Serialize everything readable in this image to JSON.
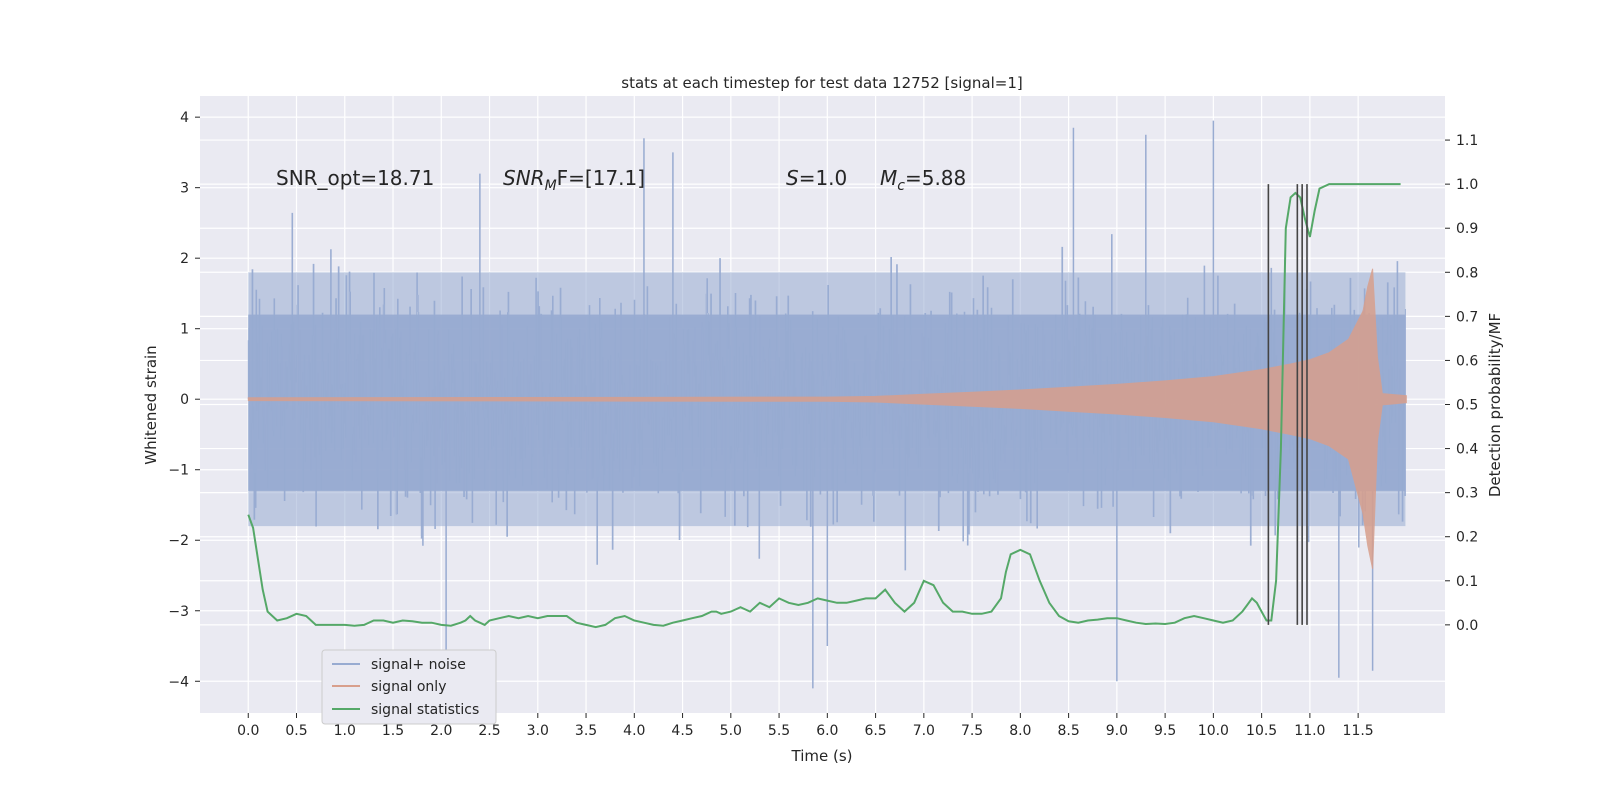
{
  "chart_data": {
    "type": "line",
    "title": "stats at each timestep for test data 12752 [signal=1]",
    "xlabel": "Time (s)",
    "ylabel_left": "Whitened strain",
    "ylabel_right": "Detection probability/MF",
    "xlim": [
      -0.5,
      12.4
    ],
    "ylim_left": [
      -4.45,
      4.3
    ],
    "ylim_right": [
      -0.2,
      1.2
    ],
    "x_ticks": [
      0.0,
      0.5,
      1.0,
      1.5,
      2.0,
      2.5,
      3.0,
      3.5,
      4.0,
      4.5,
      5.0,
      5.5,
      6.0,
      6.5,
      7.0,
      7.5,
      8.0,
      8.5,
      9.0,
      9.5,
      10.0,
      10.5,
      11.0,
      11.5
    ],
    "x_tick_labels": [
      "0.0",
      "0.5",
      "1.0",
      "1.5",
      "2.0",
      "2.5",
      "3.0",
      "3.5",
      "4.0",
      "4.5",
      "5.0",
      "5.5",
      "6.0",
      "6.5",
      "7.0",
      "7.5",
      "8.0",
      "8.5",
      "9.0",
      "9.5",
      "10.0",
      "10.5",
      "11.0",
      "11.5"
    ],
    "y_left_ticks": [
      -4,
      -3,
      -2,
      -1,
      0,
      1,
      2,
      3,
      4
    ],
    "y_left_tick_labels": [
      "−4",
      "−3",
      "−2",
      "−1",
      "0",
      "1",
      "2",
      "3",
      "4"
    ],
    "y_right_ticks": [
      0.0,
      0.1,
      0.2,
      0.3,
      0.4,
      0.5,
      0.6,
      0.7,
      0.8,
      0.9,
      1.0,
      1.1
    ],
    "y_right_tick_labels": [
      "0.0",
      "0.1",
      "0.2",
      "0.3",
      "0.4",
      "0.5",
      "0.6",
      "0.7",
      "0.8",
      "0.9",
      "1.0",
      "1.1"
    ],
    "grid": true,
    "legend_position": "lower-left",
    "colors": {
      "background": "#eaeaf2",
      "grid": "#ffffff",
      "noise": "#98abd1",
      "signal": "#d89f8c",
      "stats": "#55a868",
      "markers": "#444444"
    },
    "series": [
      {
        "name": "signal+ noise",
        "axis": "left",
        "description_range": [
          -4.1,
          3.95
        ],
        "x_range": [
          0.0,
          11.99
        ],
        "spikes": [
          {
            "x": 2.05,
            "y": -3.6
          },
          {
            "x": 4.1,
            "y": 3.7
          },
          {
            "x": 4.4,
            "y": 3.5
          },
          {
            "x": 5.85,
            "y": -4.1
          },
          {
            "x": 8.55,
            "y": 3.85
          },
          {
            "x": 9.0,
            "y": -4.0
          },
          {
            "x": 10.0,
            "y": 3.95
          },
          {
            "x": 11.3,
            "y": -3.95
          },
          {
            "x": 11.65,
            "y": -3.85
          },
          {
            "x": 9.3,
            "y": 3.75
          },
          {
            "x": 6.0,
            "y": -3.5
          },
          {
            "x": 2.4,
            "y": 3.2
          }
        ]
      },
      {
        "name": "signal only",
        "axis": "left",
        "x": [
          0.0,
          6.0,
          6.5,
          7.0,
          7.5,
          8.0,
          8.5,
          9.0,
          9.5,
          10.0,
          10.5,
          10.8,
          11.0,
          11.2,
          11.4,
          11.55,
          11.6,
          11.65,
          11.7,
          11.75,
          12.0
        ],
        "envelope": [
          0.02,
          0.03,
          0.04,
          0.07,
          0.1,
          0.13,
          0.17,
          0.21,
          0.26,
          0.32,
          0.42,
          0.5,
          0.56,
          0.66,
          0.85,
          1.25,
          1.6,
          1.85,
          0.6,
          0.08,
          0.05
        ]
      },
      {
        "name": "signal statistics",
        "axis": "right",
        "x": [
          0.0,
          0.05,
          0.1,
          0.15,
          0.2,
          0.3,
          0.4,
          0.5,
          0.6,
          0.7,
          0.8,
          0.9,
          1.0,
          1.1,
          1.2,
          1.3,
          1.4,
          1.5,
          1.6,
          1.7,
          1.8,
          1.9,
          2.0,
          2.1,
          2.2,
          2.25,
          2.3,
          2.35,
          2.4,
          2.45,
          2.5,
          2.6,
          2.7,
          2.8,
          2.9,
          3.0,
          3.1,
          3.2,
          3.3,
          3.4,
          3.5,
          3.6,
          3.7,
          3.8,
          3.9,
          4.0,
          4.1,
          4.2,
          4.3,
          4.4,
          4.5,
          4.6,
          4.7,
          4.75,
          4.8,
          4.85,
          4.9,
          5.0,
          5.1,
          5.2,
          5.3,
          5.4,
          5.5,
          5.6,
          5.7,
          5.8,
          5.9,
          6.0,
          6.1,
          6.2,
          6.3,
          6.4,
          6.5,
          6.6,
          6.7,
          6.8,
          6.9,
          7.0,
          7.1,
          7.2,
          7.3,
          7.4,
          7.5,
          7.6,
          7.7,
          7.8,
          7.85,
          7.9,
          8.0,
          8.1,
          8.2,
          8.3,
          8.4,
          8.5,
          8.6,
          8.7,
          8.8,
          8.9,
          9.0,
          9.1,
          9.2,
          9.3,
          9.4,
          9.5,
          9.6,
          9.7,
          9.8,
          9.9,
          10.0,
          10.1,
          10.2,
          10.3,
          10.35,
          10.4,
          10.45,
          10.5,
          10.55,
          10.6,
          10.65,
          10.7,
          10.75,
          10.8,
          10.85,
          10.9,
          10.95,
          11.0,
          11.05,
          11.1,
          11.2,
          11.3,
          11.5,
          11.7,
          11.9,
          11.94
        ],
        "values": [
          0.25,
          0.22,
          0.15,
          0.08,
          0.03,
          0.01,
          0.015,
          0.025,
          0.02,
          0.0,
          0.0,
          0.0,
          0.0,
          -0.002,
          0.0,
          0.01,
          0.01,
          0.005,
          0.01,
          0.008,
          0.005,
          0.005,
          0.0,
          -0.002,
          0.005,
          0.01,
          0.02,
          0.01,
          0.005,
          0.0,
          0.01,
          0.015,
          0.02,
          0.015,
          0.02,
          0.015,
          0.02,
          0.02,
          0.02,
          0.005,
          0.0,
          -0.005,
          0.0,
          0.015,
          0.02,
          0.01,
          0.005,
          0.0,
          -0.002,
          0.005,
          0.01,
          0.015,
          0.02,
          0.025,
          0.03,
          0.03,
          0.025,
          0.03,
          0.04,
          0.03,
          0.05,
          0.04,
          0.06,
          0.05,
          0.045,
          0.05,
          0.06,
          0.055,
          0.05,
          0.05,
          0.055,
          0.06,
          0.06,
          0.08,
          0.05,
          0.03,
          0.05,
          0.1,
          0.09,
          0.05,
          0.03,
          0.03,
          0.025,
          0.025,
          0.03,
          0.06,
          0.12,
          0.16,
          0.17,
          0.16,
          0.1,
          0.05,
          0.02,
          0.008,
          0.005,
          0.01,
          0.012,
          0.015,
          0.015,
          0.01,
          0.005,
          0.002,
          0.003,
          0.002,
          0.005,
          0.015,
          0.02,
          0.015,
          0.01,
          0.005,
          0.01,
          0.03,
          0.045,
          0.06,
          0.05,
          0.03,
          0.01,
          0.01,
          0.1,
          0.4,
          0.9,
          0.97,
          0.98,
          0.97,
          0.92,
          0.88,
          0.94,
          0.99,
          1.0,
          1.0,
          1.0,
          1.0,
          1.0,
          1.0
        ]
      }
    ],
    "vertical_markers": [
      {
        "x": 10.57,
        "ymin": 0.0,
        "ymax": 1.0
      },
      {
        "x": 10.87,
        "ymin": 0.0,
        "ymax": 1.0
      },
      {
        "x": 10.92,
        "ymin": 0.0,
        "ymax": 1.0
      },
      {
        "x": 10.97,
        "ymin": 0.0,
        "ymax": 1.0
      }
    ],
    "annotations": [
      {
        "id": "snr_opt",
        "text": "SNR_opt=18.71",
        "x": 0.2,
        "y": 3.1
      },
      {
        "id": "snr_mf",
        "text": "SNR_MF=[17.1]",
        "x": 2.62,
        "y": 3.1
      },
      {
        "id": "s",
        "text": "S=1.0",
        "x": 5.6,
        "y": 3.1
      },
      {
        "id": "mc",
        "text": "M_c=5.88",
        "x": 6.6,
        "y": 3.1
      }
    ]
  },
  "legend": {
    "items": [
      {
        "label": "signal+ noise",
        "color": "#98abd1"
      },
      {
        "label": "signal only",
        "color": "#d89f8c"
      },
      {
        "label": "signal statistics",
        "color": "#55a868"
      }
    ]
  },
  "annotation_text": {
    "snr_opt": "SNR_opt=18.71",
    "snr_mf_main": "SNR",
    "snr_mf_sub": "M",
    "snr_mf_tail": "F=[17.1]",
    "s_symbol": "S",
    "s_tail": "=1.0",
    "mc_symbol": "M",
    "mc_sub": "c",
    "mc_tail": "=5.88"
  }
}
